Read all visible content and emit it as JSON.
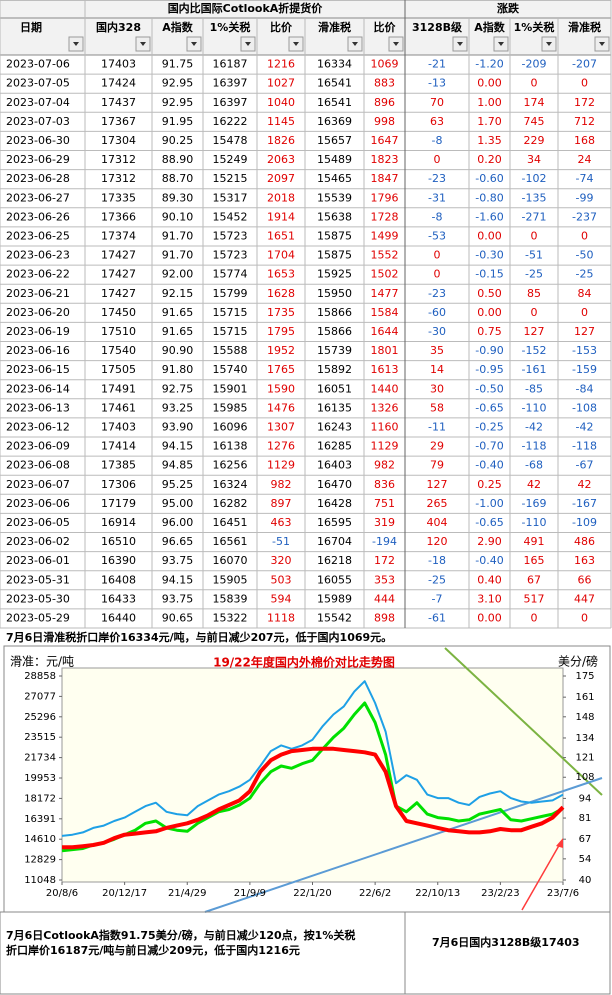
{
  "header": {
    "title": "国内比国际CotlookA折提货价",
    "change_title": "涨跌",
    "columns": [
      "日期",
      "国内328",
      "A指数",
      "1%关税",
      "比价",
      "滑准税",
      "比价",
      "3128B级",
      "A指数",
      "1%关税",
      "滑准税"
    ]
  },
  "table": {
    "rows": [
      [
        "2023-07-06",
        "17403",
        "91.75",
        "16187",
        "1216",
        "16334",
        "1069",
        "-21",
        "-1.20",
        "-209",
        "-207"
      ],
      [
        "2023-07-05",
        "17424",
        "92.95",
        "16397",
        "1027",
        "16541",
        "883",
        "-13",
        "0.00",
        "0",
        "0"
      ],
      [
        "2023-07-04",
        "17437",
        "92.95",
        "16397",
        "1040",
        "16541",
        "896",
        "70",
        "1.00",
        "174",
        "172"
      ],
      [
        "2023-07-03",
        "17367",
        "91.95",
        "16222",
        "1145",
        "16369",
        "998",
        "63",
        "1.70",
        "745",
        "712"
      ],
      [
        "2023-06-30",
        "17304",
        "90.25",
        "15478",
        "1826",
        "15657",
        "1647",
        "-8",
        "1.35",
        "229",
        "168"
      ],
      [
        "2023-06-29",
        "17312",
        "88.90",
        "15249",
        "2063",
        "15489",
        "1823",
        "0",
        "0.20",
        "34",
        "24"
      ],
      [
        "2023-06-28",
        "17312",
        "88.70",
        "15215",
        "2097",
        "15465",
        "1847",
        "-23",
        "-0.60",
        "-102",
        "-74"
      ],
      [
        "2023-06-27",
        "17335",
        "89.30",
        "15317",
        "2018",
        "15539",
        "1796",
        "-31",
        "-0.80",
        "-135",
        "-99"
      ],
      [
        "2023-06-26",
        "17366",
        "90.10",
        "15452",
        "1914",
        "15638",
        "1728",
        "-8",
        "-1.60",
        "-271",
        "-237"
      ],
      [
        "2023-06-25",
        "17374",
        "91.70",
        "15723",
        "1651",
        "15875",
        "1499",
        "-53",
        "0.00",
        "0",
        "0"
      ],
      [
        "2023-06-23",
        "17427",
        "91.70",
        "15723",
        "1704",
        "15875",
        "1552",
        "0",
        "-0.30",
        "-51",
        "-50"
      ],
      [
        "2023-06-22",
        "17427",
        "92.00",
        "15774",
        "1653",
        "15925",
        "1502",
        "0",
        "-0.15",
        "-25",
        "-25"
      ],
      [
        "2023-06-21",
        "17427",
        "92.15",
        "15799",
        "1628",
        "15950",
        "1477",
        "-23",
        "0.50",
        "85",
        "84"
      ],
      [
        "2023-06-20",
        "17450",
        "91.65",
        "15715",
        "1735",
        "15866",
        "1584",
        "-60",
        "0.00",
        "0",
        "0"
      ],
      [
        "2023-06-19",
        "17510",
        "91.65",
        "15715",
        "1795",
        "15866",
        "1644",
        "-30",
        "0.75",
        "127",
        "127"
      ],
      [
        "2023-06-16",
        "17540",
        "90.90",
        "15588",
        "1952",
        "15739",
        "1801",
        "35",
        "-0.90",
        "-152",
        "-153"
      ],
      [
        "2023-06-15",
        "17505",
        "91.80",
        "15740",
        "1765",
        "15892",
        "1613",
        "14",
        "-0.95",
        "-161",
        "-159"
      ],
      [
        "2023-06-14",
        "17491",
        "92.75",
        "15901",
        "1590",
        "16051",
        "1440",
        "30",
        "-0.50",
        "-85",
        "-84"
      ],
      [
        "2023-06-13",
        "17461",
        "93.25",
        "15985",
        "1476",
        "16135",
        "1326",
        "58",
        "-0.65",
        "-110",
        "-108"
      ],
      [
        "2023-06-12",
        "17403",
        "93.90",
        "16096",
        "1307",
        "16243",
        "1160",
        "-11",
        "-0.25",
        "-42",
        "-42"
      ],
      [
        "2023-06-09",
        "17414",
        "94.15",
        "16138",
        "1276",
        "16285",
        "1129",
        "29",
        "-0.70",
        "-118",
        "-118"
      ],
      [
        "2023-06-08",
        "17385",
        "94.85",
        "16256",
        "1129",
        "16403",
        "982",
        "79",
        "-0.40",
        "-68",
        "-67"
      ],
      [
        "2023-06-07",
        "17306",
        "95.25",
        "16324",
        "982",
        "16470",
        "836",
        "127",
        "0.25",
        "42",
        "42"
      ],
      [
        "2023-06-06",
        "17179",
        "95.00",
        "16282",
        "897",
        "16428",
        "751",
        "265",
        "-1.00",
        "-169",
        "-167"
      ],
      [
        "2023-06-05",
        "16914",
        "96.00",
        "16451",
        "463",
        "16595",
        "319",
        "404",
        "-0.65",
        "-110",
        "-109"
      ],
      [
        "2023-06-02",
        "16510",
        "96.65",
        "16561",
        "-51",
        "16704",
        "-194",
        "120",
        "2.90",
        "491",
        "486"
      ],
      [
        "2023-06-01",
        "16390",
        "93.75",
        "16070",
        "320",
        "16218",
        "172",
        "-18",
        "-0.40",
        "165",
        "163"
      ],
      [
        "2023-05-31",
        "16408",
        "94.15",
        "15905",
        "503",
        "16055",
        "353",
        "-25",
        "0.40",
        "67",
        "66"
      ],
      [
        "2023-05-30",
        "16433",
        "93.75",
        "15839",
        "594",
        "15989",
        "444",
        "-7",
        "3.10",
        "517",
        "447"
      ],
      [
        "2023-05-29",
        "16440",
        "90.65",
        "15322",
        "1118",
        "15542",
        "898",
        "-61",
        "0.00",
        "0",
        "0"
      ]
    ]
  },
  "note_top": "7月6日滑准税折口岸价16334元/吨，与前日减少207元，低于国内1069元。",
  "chart_data": {
    "type": "line",
    "title": "19/22年度国内外棉价对比走势图",
    "y_label": "滑准：元/吨",
    "y2_label": "美分/磅",
    "categories": [
      "20/8/6",
      null,
      null,
      null,
      null,
      null,
      "20/12/17",
      null,
      null,
      null,
      null,
      null,
      "21/4/29",
      null,
      null,
      null,
      null,
      null,
      "21/9/9",
      null,
      null,
      null,
      null,
      null,
      "22/1/20",
      null,
      null,
      null,
      null,
      null,
      "22/6/2",
      null,
      null,
      null,
      null,
      null,
      "22/10/13",
      null,
      null,
      null,
      null,
      null,
      "23/2/23",
      null,
      null,
      null,
      null,
      null,
      "23/7/6"
    ],
    "ylim": [
      11048,
      28858
    ],
    "yticks": [
      11048,
      12829,
      14610,
      16391,
      18172,
      19953,
      21734,
      23515,
      25296,
      27077,
      28858
    ],
    "y2lim": [
      40,
      175
    ],
    "y2ticks": [
      40,
      54,
      67,
      81,
      94,
      108,
      121,
      134,
      148,
      161,
      175
    ],
    "grid": false,
    "series": [
      {
        "color": "#1ea0e6",
        "values": [
          14900,
          15000,
          15200,
          15600,
          15800,
          16200,
          16500,
          17000,
          17500,
          17800,
          17000,
          16800,
          16700,
          17500,
          18000,
          18500,
          18800,
          19200,
          19800,
          21000,
          22300,
          22800,
          22500,
          22800,
          23300,
          24500,
          25500,
          26200,
          27500,
          28400,
          26500,
          24000,
          19500,
          20200,
          19800,
          18500,
          18200,
          18200,
          17800,
          17600,
          18300,
          18600,
          18800,
          18200,
          17900,
          17800,
          17900,
          18000,
          18500
        ]
      },
      {
        "color": "#00e000",
        "values": [
          13600,
          13700,
          13800,
          14100,
          14300,
          14600,
          15000,
          15400,
          16000,
          16200,
          15600,
          15400,
          15300,
          16000,
          16500,
          17000,
          17200,
          17600,
          18200,
          19500,
          20500,
          21000,
          20800,
          21200,
          21500,
          22500,
          23500,
          24300,
          25500,
          26500,
          24800,
          22000,
          17500,
          17000,
          17800,
          16800,
          16500,
          16400,
          16200,
          16300,
          16800,
          17000,
          17200,
          16300,
          16200,
          16400,
          16600,
          16800,
          17300
        ]
      },
      {
        "color": "#ff0000",
        "values": [
          13900,
          13900,
          14000,
          14100,
          14300,
          14700,
          15000,
          15100,
          15200,
          15300,
          15600,
          15800,
          16000,
          16300,
          16700,
          17200,
          17600,
          18000,
          18800,
          20500,
          21500,
          22000,
          22300,
          22400,
          22500,
          22500,
          22500,
          22400,
          22300,
          22200,
          22000,
          20500,
          17500,
          16200,
          16000,
          15800,
          15600,
          15400,
          15300,
          15200,
          15200,
          15300,
          15500,
          15400,
          15400,
          15700,
          16000,
          16500,
          17400
        ]
      }
    ]
  },
  "note_bottom_left": "7月6日CotlookA指数91.75美分/磅，与前日减少120点，按1%关税折口岸价16187元/吨与前日减少209元，低于国内1216元",
  "note_bottom_right": "7月6日国内3128B级17403"
}
